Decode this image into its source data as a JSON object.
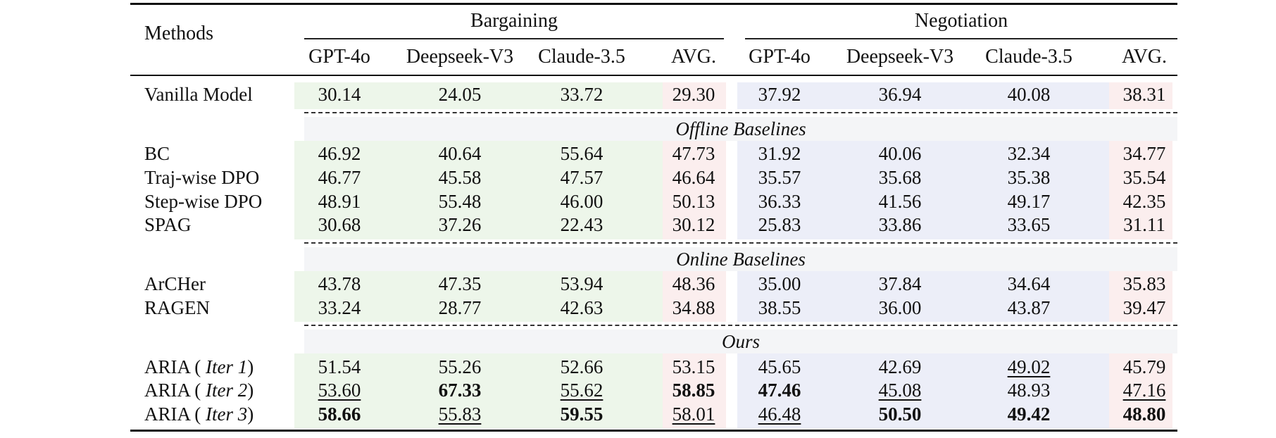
{
  "header": {
    "methods": "Methods",
    "groups": [
      "Bargaining",
      "Negotiation"
    ],
    "columns": [
      "GPT-4o",
      "Deepseek-V3",
      "Claude-3.5",
      "AVG.",
      "GPT-4o",
      "Deepseek-V3",
      "Claude-3.5",
      "AVG."
    ]
  },
  "sections": [
    "Offline Baselines",
    "Online Baselines",
    "Ours"
  ],
  "colors": {
    "bargaining_bg": "#edf6ea",
    "avg_bg": "#fbeeee",
    "negotiation_bg": "#eceef8",
    "section_bg": "#f4f5f7"
  },
  "rows": [
    {
      "method": "Vanilla Model",
      "iter": "",
      "values": [
        "30.14",
        "24.05",
        "33.72",
        "29.30",
        "37.92",
        "36.94",
        "40.08",
        "38.31"
      ],
      "bold": [],
      "underline": []
    },
    {
      "method": "BC",
      "iter": "",
      "values": [
        "46.92",
        "40.64",
        "55.64",
        "47.73",
        "31.92",
        "40.06",
        "32.34",
        "34.77"
      ],
      "bold": [],
      "underline": []
    },
    {
      "method": "Traj-wise DPO",
      "iter": "",
      "values": [
        "46.77",
        "45.58",
        "47.57",
        "46.64",
        "35.57",
        "35.68",
        "35.38",
        "35.54"
      ],
      "bold": [],
      "underline": []
    },
    {
      "method": "Step-wise DPO",
      "iter": "",
      "values": [
        "48.91",
        "55.48",
        "46.00",
        "50.13",
        "36.33",
        "41.56",
        "49.17",
        "42.35"
      ],
      "bold": [],
      "underline": []
    },
    {
      "method": "SPAG",
      "iter": "",
      "values": [
        "30.68",
        "37.26",
        "22.43",
        "30.12",
        "25.83",
        "33.86",
        "33.65",
        "31.11"
      ],
      "bold": [],
      "underline": []
    },
    {
      "method": "ArCHer",
      "iter": "",
      "values": [
        "43.78",
        "47.35",
        "53.94",
        "48.36",
        "35.00",
        "37.84",
        "34.64",
        "35.83"
      ],
      "bold": [],
      "underline": []
    },
    {
      "method": "RAGEN",
      "iter": "",
      "values": [
        "33.24",
        "28.77",
        "42.63",
        "34.88",
        "38.55",
        "36.00",
        "43.87",
        "39.47"
      ],
      "bold": [],
      "underline": []
    },
    {
      "method": "ARIA (",
      "iter": "Iter 1",
      "values": [
        "51.54",
        "55.26",
        "52.66",
        "53.15",
        "45.65",
        "42.69",
        "49.02",
        "45.79"
      ],
      "bold": [],
      "underline": [
        6
      ]
    },
    {
      "method": "ARIA (",
      "iter": "Iter 2",
      "values": [
        "53.60",
        "67.33",
        "55.62",
        "58.85",
        "47.46",
        "45.08",
        "48.93",
        "47.16"
      ],
      "bold": [
        1,
        3,
        4
      ],
      "underline": [
        0,
        2,
        5,
        7
      ]
    },
    {
      "method": "ARIA (",
      "iter": "Iter 3",
      "values": [
        "58.66",
        "55.83",
        "59.55",
        "58.01",
        "46.48",
        "50.50",
        "49.42",
        "48.80"
      ],
      "bold": [
        0,
        2,
        5,
        6,
        7
      ],
      "underline": [
        1,
        3,
        4
      ]
    }
  ]
}
